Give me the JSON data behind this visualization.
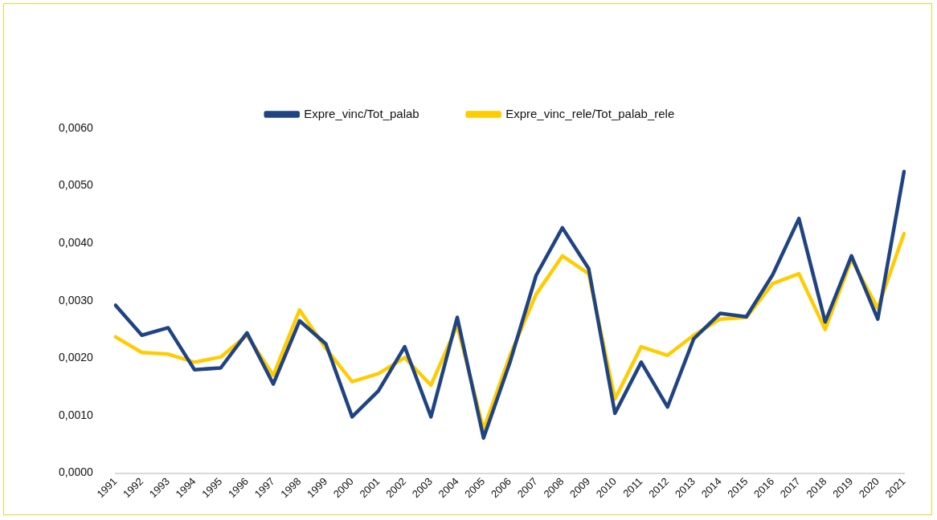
{
  "chart_data": {
    "type": "line",
    "categories": [
      "1991",
      "1992",
      "1993",
      "1994",
      "1995",
      "1996",
      "1997",
      "1998",
      "1999",
      "2000",
      "2001",
      "2002",
      "2003",
      "2004",
      "2005",
      "2006",
      "2007",
      "2008",
      "2009",
      "2010",
      "2011",
      "2012",
      "2013",
      "2014",
      "2015",
      "2016",
      "2017",
      "2018",
      "2019",
      "2020",
      "2021"
    ],
    "series": [
      {
        "name": "Expre_vinc/Tot_palab",
        "color": "#1f4383",
        "values": [
          0.00292,
          0.0024,
          0.00253,
          0.0018,
          0.00183,
          0.00244,
          0.00155,
          0.00265,
          0.00225,
          0.00098,
          0.00143,
          0.0022,
          0.00098,
          0.00271,
          0.00061,
          0.00192,
          0.00344,
          0.00427,
          0.00356,
          0.00104,
          0.00193,
          0.00115,
          0.00234,
          0.00278,
          0.00272,
          0.00345,
          0.00443,
          0.00263,
          0.00378,
          0.00268,
          0.00525
        ]
      },
      {
        "name": "Expre_vinc_rele/Tot_palab_rele",
        "color": "#ffcc00",
        "values": [
          0.00237,
          0.0021,
          0.00207,
          0.00193,
          0.00202,
          0.0024,
          0.0017,
          0.00284,
          0.00217,
          0.00159,
          0.00173,
          0.00201,
          0.00153,
          0.00257,
          0.00076,
          0.00204,
          0.00311,
          0.00378,
          0.00347,
          0.00129,
          0.0022,
          0.00205,
          0.0024,
          0.00268,
          0.00271,
          0.0033,
          0.00347,
          0.0025,
          0.00372,
          0.00287,
          0.00417
        ]
      }
    ],
    "ylim": [
      0,
      0.006
    ],
    "yticks": [
      {
        "value": 0,
        "label": "0,0000"
      },
      {
        "value": 0.001,
        "label": "0,0010"
      },
      {
        "value": 0.002,
        "label": "0,0020"
      },
      {
        "value": 0.003,
        "label": "0,0030"
      },
      {
        "value": 0.004,
        "label": "0,0040"
      },
      {
        "value": 0.005,
        "label": "0,0050"
      },
      {
        "value": 0.006,
        "label": "0,0060"
      }
    ],
    "grid": false,
    "legend": "top",
    "marker": "none",
    "line_style": "solid"
  }
}
